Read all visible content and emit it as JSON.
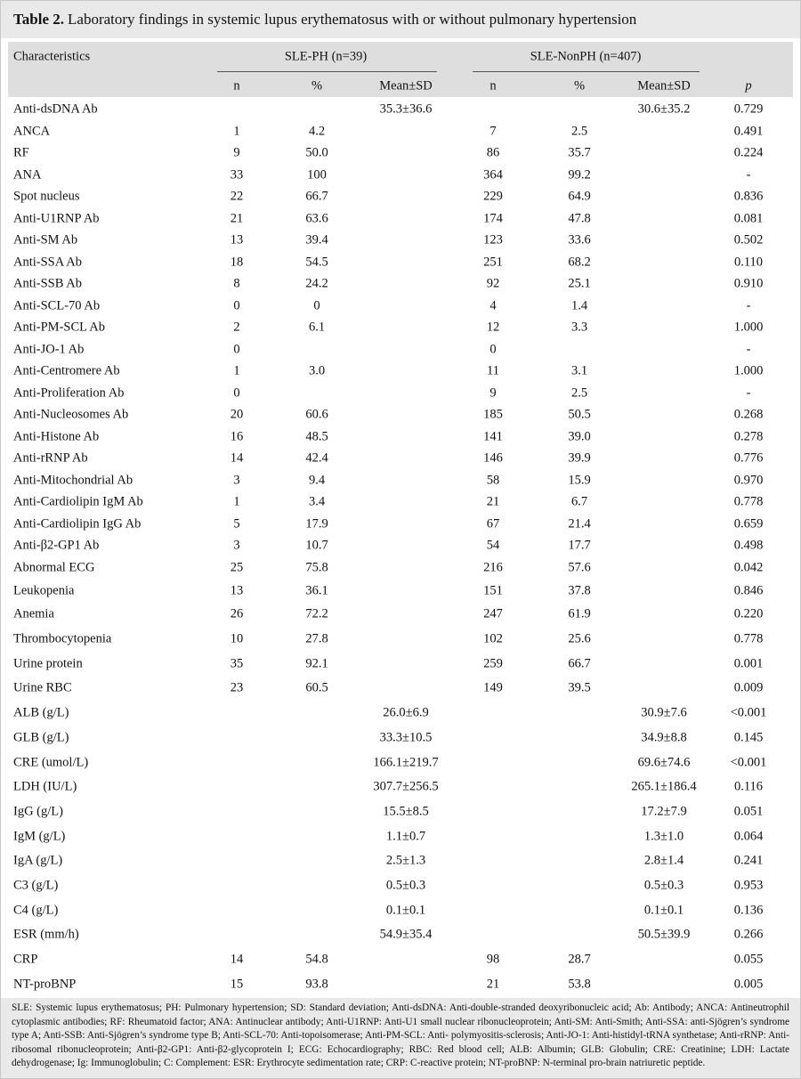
{
  "title": {
    "label": "Table 2.",
    "text": "Laboratory findings in systemic lupus erythematosus with or without pulmonary hypertension"
  },
  "table": {
    "header": {
      "characteristics": "Characteristics",
      "groups": [
        "SLE-PH (n=39)",
        "SLE-NonPH (n=407)"
      ],
      "columns": [
        "n",
        "%",
        "Mean±SD",
        "n",
        "%",
        "Mean±SD",
        "p"
      ]
    },
    "rows": [
      [
        "Anti-dsDNA Ab",
        null,
        null,
        "35.3±36.6",
        null,
        null,
        "30.6±35.2",
        "0.729"
      ],
      [
        "ANCA",
        "1",
        "4.2",
        null,
        "7",
        "2.5",
        null,
        "0.491"
      ],
      [
        "RF",
        "9",
        "50.0",
        null,
        "86",
        "35.7",
        null,
        "0.224"
      ],
      [
        "ANA",
        "33",
        "100",
        null,
        "364",
        "99.2",
        null,
        "-"
      ],
      [
        "Spot nucleus",
        "22",
        "66.7",
        null,
        "229",
        "64.9",
        null,
        "0.836"
      ],
      [
        "Anti-U1RNP Ab",
        "21",
        "63.6",
        null,
        "174",
        "47.8",
        null,
        "0.081"
      ],
      [
        "Anti-SM Ab",
        "13",
        "39.4",
        null,
        "123",
        "33.6",
        null,
        "0.502"
      ],
      [
        "Anti-SSA Ab",
        "18",
        "54.5",
        null,
        "251",
        "68.2",
        null,
        "0.110"
      ],
      [
        "Anti-SSB Ab",
        "8",
        "24.2",
        null,
        "92",
        "25.1",
        null,
        "0.910"
      ],
      [
        "Anti-SCL-70 Ab",
        "0",
        "0",
        null,
        "4",
        "1.4",
        null,
        "-"
      ],
      [
        "Anti-PM-SCL Ab",
        "2",
        "6.1",
        null,
        "12",
        "3.3",
        null,
        "1.000"
      ],
      [
        "Anti-JO-1 Ab",
        "0",
        null,
        null,
        "0",
        null,
        null,
        "-"
      ],
      [
        "Anti-Centromere Ab",
        "1",
        "3.0",
        null,
        "11",
        "3.1",
        null,
        "1.000"
      ],
      [
        "Anti-Proliferation Ab",
        "0",
        null,
        null,
        "9",
        "2.5",
        null,
        "-"
      ],
      [
        "Anti-Nucleosomes Ab",
        "20",
        "60.6",
        null,
        "185",
        "50.5",
        null,
        "0.268"
      ],
      [
        "Anti-Histone Ab",
        "16",
        "48.5",
        null,
        "141",
        "39.0",
        null,
        "0.278"
      ],
      [
        "Anti-rRNP Ab",
        "14",
        "42.4",
        null,
        "146",
        "39.9",
        null,
        "0.776"
      ],
      [
        "Anti-Mitochondrial Ab",
        "3",
        "9.4",
        null,
        "58",
        "15.9",
        null,
        "0.970"
      ],
      [
        "Anti-Cardiolipin IgM Ab",
        "1",
        "3.4",
        null,
        "21",
        "6.7",
        null,
        "0.778"
      ],
      [
        "Anti-Cardiolipin IgG Ab",
        "5",
        "17.9",
        null,
        "67",
        "21.4",
        null,
        "0.659"
      ],
      [
        "Anti-β2-GP1 Ab",
        "3",
        "10.7",
        null,
        "54",
        "17.7",
        null,
        "0.498"
      ],
      [
        "Abnormal ECG",
        "25",
        "75.8",
        null,
        "216",
        "57.6",
        null,
        "0.042"
      ],
      [
        "Leukopenia",
        "13",
        "36.1",
        null,
        "151",
        "37.8",
        null,
        "0.846"
      ],
      [
        "Anemia",
        "26",
        "72.2",
        null,
        "247",
        "61.9",
        null,
        "0.220"
      ],
      [
        "Thrombocytopenia",
        "10",
        "27.8",
        null,
        "102",
        "25.6",
        null,
        "0.778"
      ],
      [
        "Urine protein",
        "35",
        "92.1",
        null,
        "259",
        "66.7",
        null,
        "0.001"
      ],
      [
        "Urine RBC",
        "23",
        "60.5",
        null,
        "149",
        "39.5",
        null,
        "0.009"
      ],
      [
        "ALB (g/L)",
        null,
        null,
        "26.0±6.9",
        null,
        null,
        "30.9±7.6",
        "<0.001"
      ],
      [
        "GLB (g/L)",
        null,
        null,
        "33.3±10.5",
        null,
        null,
        "34.9±8.8",
        "0.145"
      ],
      [
        "CRE (umol/L)",
        null,
        null,
        "166.1±219.7",
        null,
        null,
        "69.6±74.6",
        "<0.001"
      ],
      [
        "LDH (IU/L)",
        null,
        null,
        "307.7±256.5",
        null,
        null,
        "265.1±186.4",
        "0.116"
      ],
      [
        "IgG (g/L)",
        null,
        null,
        "15.5±8.5",
        null,
        null,
        "17.2±7.9",
        "0.051"
      ],
      [
        "IgM (g/L)",
        null,
        null,
        "1.1±0.7",
        null,
        null,
        "1.3±1.0",
        "0.064"
      ],
      [
        "IgA (g/L)",
        null,
        null,
        "2.5±1.3",
        null,
        null,
        "2.8±1.4",
        "0.241"
      ],
      [
        "C3 (g/L)",
        null,
        null,
        "0.5±0.3",
        null,
        null,
        "0.5±0.3",
        "0.953"
      ],
      [
        "C4 (g/L)",
        null,
        null,
        "0.1±0.1",
        null,
        null,
        "0.1±0.1",
        "0.136"
      ],
      [
        "ESR (mm/h)",
        null,
        null,
        "54.9±35.4",
        null,
        null,
        "50.5±39.9",
        "0.266"
      ],
      [
        "CRP",
        "14",
        "54.8",
        null,
        "98",
        "28.7",
        null,
        "0.055"
      ],
      [
        "NT-proBNP",
        "15",
        "93.8",
        null,
        "21",
        "53.8",
        null,
        "0.005"
      ]
    ]
  },
  "footnote": "SLE: Systemic lupus erythematosus; PH: Pulmonary hypertension; SD: Standard deviation; Anti-dsDNA: Anti-double-stranded deoxyribonucleic acid; Ab: Antibody; ANCA: Antineutrophil cytoplasmic antibodies; RF: Rheumatoid factor; ANA: Antinuclear antibody; Anti-U1RNP: Anti-U1 small nuclear ribonucleoprotein; Anti-SM: Anti-Smith; Anti-SSA: anti-Sjögren’s syndrome type A; Anti-SSB: Anti-Sjögren’s syndrome type B; Anti-SCL-70: Anti-topoisomerase; Anti-PM-SCL: Anti- polymyositis-sclerosis; Anti-JO-1: Anti-histidyl-tRNA synthetase; Anti-rRNP: Anti- ribosomal ribonucleoprotein; Anti-β2-GP1: Anti-β2-glycoprotein I; ECG: Echocardiography; RBC: Red blood cell; ALB: Albumin; GLB: Globulin; CRE: Creatinine; LDH: Lactate dehydrogenase; Ig: Immunoglobulin; C: Complement: ESR: Erythrocyte sedimentation rate; CRP: C-reactive protein; NT-proBNP: N-terminal pro-brain natriuretic peptide."
}
